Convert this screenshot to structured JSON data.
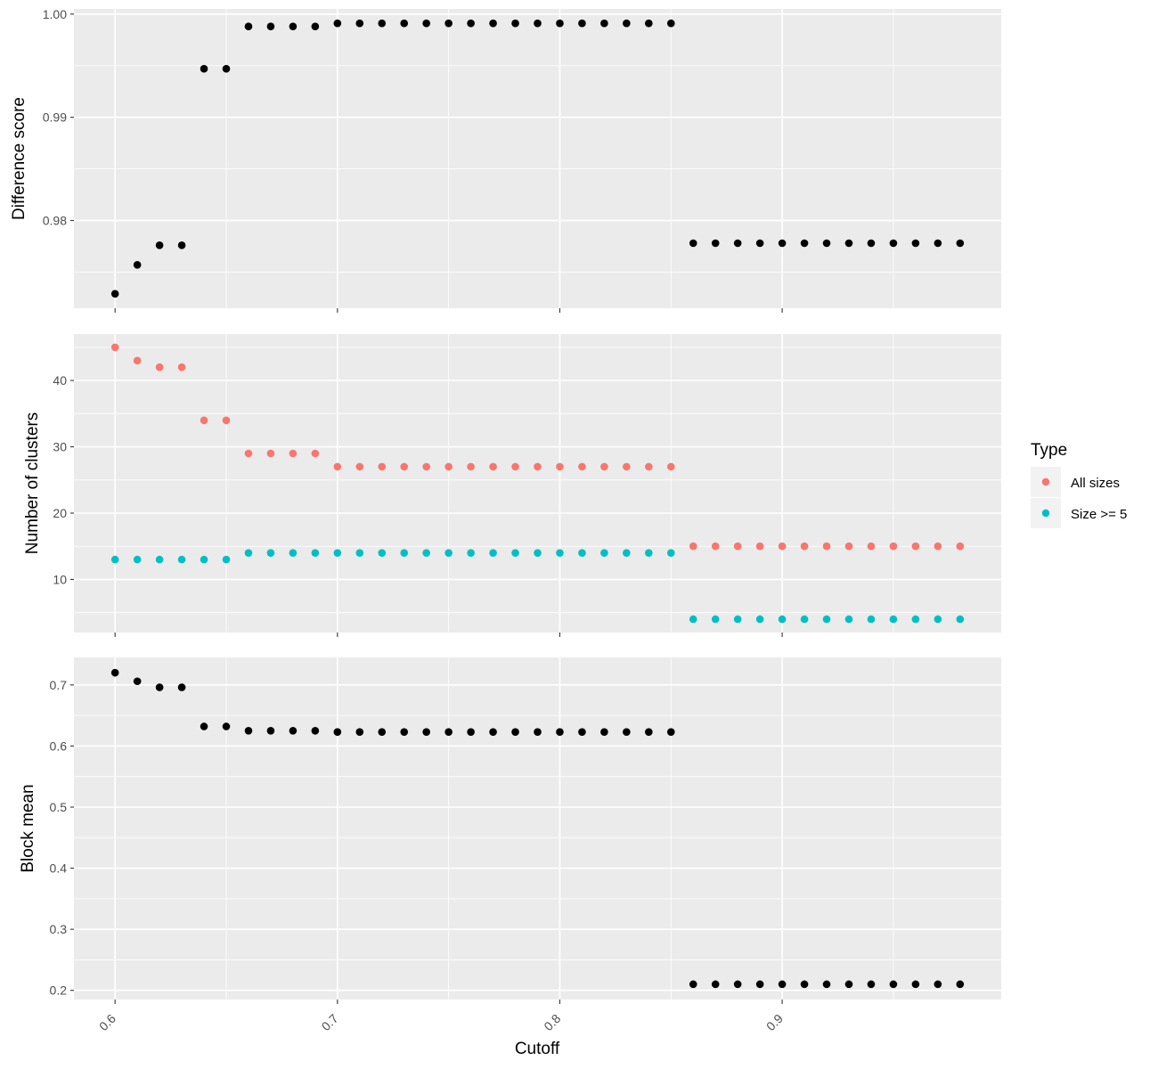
{
  "chart_data": [
    {
      "type": "scatter",
      "ylabel": "Difference score",
      "ylim": [
        0.9715,
        1.0005
      ],
      "yticks": [
        0.98,
        0.99,
        1.0
      ],
      "ytick_labels": [
        "0.98",
        "0.99",
        "1.00"
      ],
      "grid": true,
      "series": [
        {
          "color": "#000000",
          "x": [
            0.6,
            0.61,
            0.62,
            0.63,
            0.64,
            0.65,
            0.66,
            0.67,
            0.68,
            0.69,
            0.7,
            0.71,
            0.72,
            0.73,
            0.74,
            0.75,
            0.76,
            0.77,
            0.78,
            0.79,
            0.8,
            0.81,
            0.82,
            0.83,
            0.84,
            0.85,
            0.86,
            0.87,
            0.88,
            0.89,
            0.9,
            0.91,
            0.92,
            0.93,
            0.94,
            0.95,
            0.96,
            0.97,
            0.98
          ],
          "y": [
            0.9729,
            0.9757,
            0.9776,
            0.9776,
            0.9947,
            0.9947,
            0.9988,
            0.9988,
            0.9988,
            0.9988,
            0.9991,
            0.9991,
            0.9991,
            0.9991,
            0.9991,
            0.9991,
            0.9991,
            0.9991,
            0.9991,
            0.9991,
            0.9991,
            0.9991,
            0.9991,
            0.9991,
            0.9991,
            0.9991,
            0.9778,
            0.9778,
            0.9778,
            0.9778,
            0.9778,
            0.9778,
            0.9778,
            0.9778,
            0.9778,
            0.9778,
            0.9778,
            0.9778,
            0.9778
          ]
        }
      ]
    },
    {
      "type": "scatter",
      "ylabel": "Number of clusters",
      "ylim": [
        2,
        47
      ],
      "yticks": [
        10,
        20,
        30,
        40
      ],
      "ytick_labels": [
        "10",
        "20",
        "30",
        "40"
      ],
      "grid": true,
      "legend": {
        "title": "Type",
        "position": "right"
      },
      "series": [
        {
          "name": "All sizes",
          "color": "#F8766D",
          "x": [
            0.6,
            0.61,
            0.62,
            0.63,
            0.64,
            0.65,
            0.66,
            0.67,
            0.68,
            0.69,
            0.7,
            0.71,
            0.72,
            0.73,
            0.74,
            0.75,
            0.76,
            0.77,
            0.78,
            0.79,
            0.8,
            0.81,
            0.82,
            0.83,
            0.84,
            0.85,
            0.86,
            0.87,
            0.88,
            0.89,
            0.9,
            0.91,
            0.92,
            0.93,
            0.94,
            0.95,
            0.96,
            0.97,
            0.98
          ],
          "y": [
            45,
            43,
            42,
            42,
            34,
            34,
            29,
            29,
            29,
            29,
            27,
            27,
            27,
            27,
            27,
            27,
            27,
            27,
            27,
            27,
            27,
            27,
            27,
            27,
            27,
            27,
            15,
            15,
            15,
            15,
            15,
            15,
            15,
            15,
            15,
            15,
            15,
            15,
            15
          ]
        },
        {
          "name": "Size >= 5",
          "color": "#00BFC4",
          "x": [
            0.6,
            0.61,
            0.62,
            0.63,
            0.64,
            0.65,
            0.66,
            0.67,
            0.68,
            0.69,
            0.7,
            0.71,
            0.72,
            0.73,
            0.74,
            0.75,
            0.76,
            0.77,
            0.78,
            0.79,
            0.8,
            0.81,
            0.82,
            0.83,
            0.84,
            0.85,
            0.86,
            0.87,
            0.88,
            0.89,
            0.9,
            0.91,
            0.92,
            0.93,
            0.94,
            0.95,
            0.96,
            0.97,
            0.98
          ],
          "y": [
            13,
            13,
            13,
            13,
            13,
            13,
            14,
            14,
            14,
            14,
            14,
            14,
            14,
            14,
            14,
            14,
            14,
            14,
            14,
            14,
            14,
            14,
            14,
            14,
            14,
            14,
            4,
            4,
            4,
            4,
            4,
            4,
            4,
            4,
            4,
            4,
            4,
            4,
            4
          ]
        }
      ]
    },
    {
      "type": "scatter",
      "xlabel": "Cutoff",
      "ylabel": "Block mean",
      "ylim": [
        0.185,
        0.745
      ],
      "yticks": [
        0.2,
        0.3,
        0.4,
        0.5,
        0.6,
        0.7
      ],
      "ytick_labels": [
        "0.2",
        "0.3",
        "0.4",
        "0.5",
        "0.6",
        "0.7"
      ],
      "grid": true,
      "series": [
        {
          "color": "#000000",
          "x": [
            0.6,
            0.61,
            0.62,
            0.63,
            0.64,
            0.65,
            0.66,
            0.67,
            0.68,
            0.69,
            0.7,
            0.71,
            0.72,
            0.73,
            0.74,
            0.75,
            0.76,
            0.77,
            0.78,
            0.79,
            0.8,
            0.81,
            0.82,
            0.83,
            0.84,
            0.85,
            0.86,
            0.87,
            0.88,
            0.89,
            0.9,
            0.91,
            0.92,
            0.93,
            0.94,
            0.95,
            0.96,
            0.97,
            0.98
          ],
          "y": [
            0.72,
            0.706,
            0.696,
            0.696,
            0.632,
            0.632,
            0.625,
            0.625,
            0.625,
            0.625,
            0.623,
            0.623,
            0.623,
            0.623,
            0.623,
            0.623,
            0.623,
            0.623,
            0.623,
            0.623,
            0.623,
            0.623,
            0.623,
            0.623,
            0.623,
            0.623,
            0.21,
            0.21,
            0.21,
            0.21,
            0.21,
            0.21,
            0.21,
            0.21,
            0.21,
            0.21,
            0.21,
            0.21,
            0.21
          ]
        }
      ]
    }
  ],
  "x_axis": {
    "xlim": [
      0.5815,
      0.9985
    ],
    "ticks": [
      0.6,
      0.7,
      0.8,
      0.9
    ],
    "tick_labels": [
      "0.6",
      "0.7",
      "0.8",
      "0.9"
    ],
    "title": "Cutoff"
  },
  "legend": {
    "title": "Type",
    "items": [
      {
        "label": "All sizes",
        "color": "#F8766D"
      },
      {
        "label": "Size >= 5",
        "color": "#00BFC4"
      }
    ]
  }
}
